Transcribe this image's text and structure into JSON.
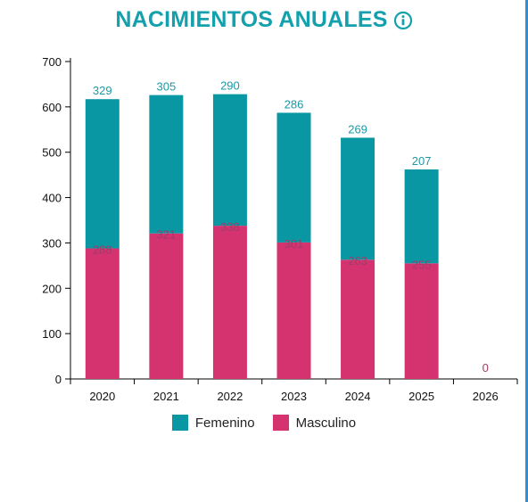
{
  "header": {
    "title": "NACIMIENTOS ANUALES",
    "info_icon": "info-icon"
  },
  "colors": {
    "title": "#14a0ad",
    "femenino": "#0a97a4",
    "masculino": "#d4336f",
    "femenino_label": "#1a9aa6",
    "masculino_label": "#9e3d66",
    "axis": "#000000",
    "frame": "#2f8fd0"
  },
  "chart_data": {
    "type": "bar",
    "stacked": true,
    "categories": [
      "2020",
      "2021",
      "2022",
      "2023",
      "2024",
      "2025",
      "2026"
    ],
    "series": [
      {
        "name": "Masculino",
        "values": [
          288,
          321,
          338,
          301,
          263,
          255,
          0
        ]
      },
      {
        "name": "Femenino",
        "values": [
          329,
          305,
          290,
          286,
          269,
          207,
          0
        ]
      }
    ],
    "data_labels": {
      "Masculino": [
        "288",
        "321",
        "338",
        "301",
        "263",
        "255",
        ""
      ],
      "Femenino": [
        "329",
        "305",
        "290",
        "286",
        "269",
        "207",
        ""
      ],
      "total_2026": "0"
    },
    "yticks": [
      0,
      100,
      200,
      300,
      400,
      500,
      600,
      700
    ],
    "ylim": [
      0,
      700
    ],
    "legend": {
      "position": "bottom",
      "entries": [
        "Femenino",
        "Masculino"
      ]
    },
    "grid": false
  }
}
